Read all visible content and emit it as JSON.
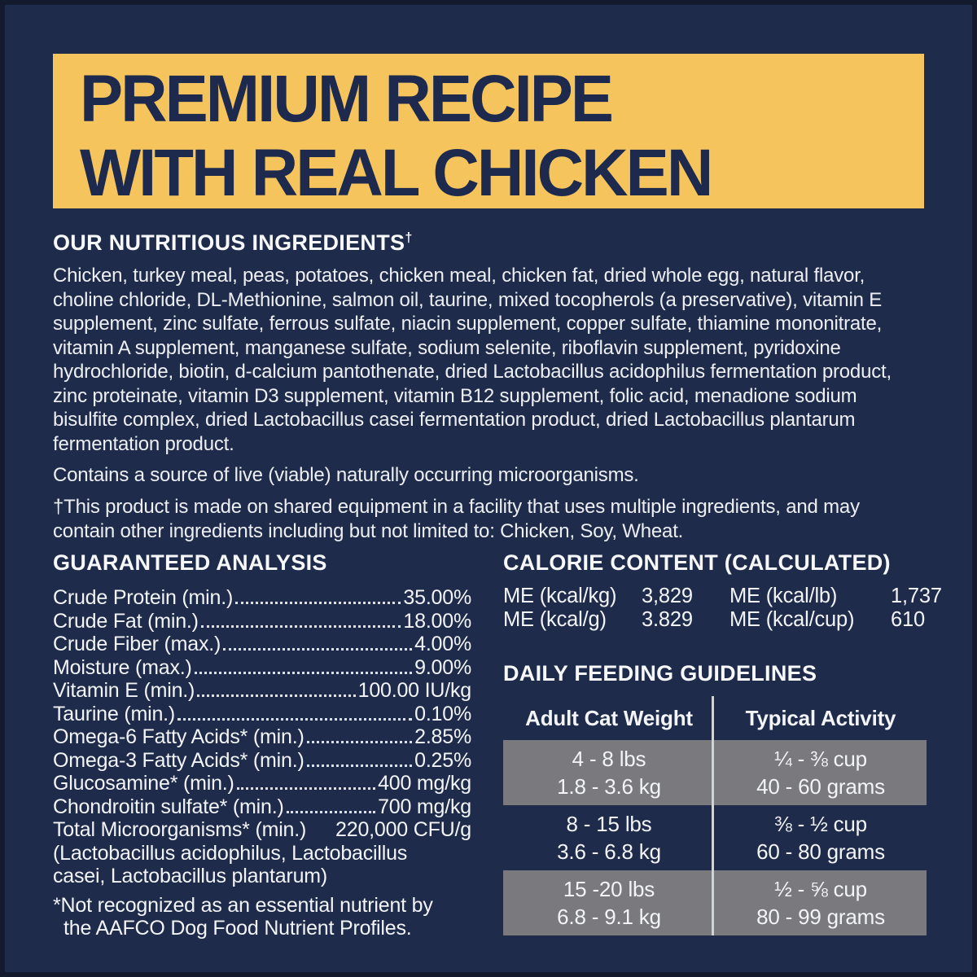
{
  "colors": {
    "background_navy": "#1f2b4a",
    "border_navy": "#131a2d",
    "banner_yellow": "#f6c45c",
    "banner_text_navy": "#1d2a4e",
    "body_text_white": "#edeff3",
    "table_row_gray": "#7a7a7e",
    "table_divider_gray": "#cfd2d6"
  },
  "banner": {
    "line1": "PREMIUM RECIPE",
    "line2": "WITH REAL CHICKEN"
  },
  "ingredients": {
    "heading": "OUR NUTRITIOUS INGREDIENTS",
    "heading_dagger": "†",
    "body": "Chicken, turkey meal, peas, potatoes, chicken meal, chicken fat, dried whole egg, natural flavor, choline chloride, DL-Methionine, salmon oil, taurine, mixed tocopherols (a preservative), vitamin E supplement, zinc sulfate, ferrous sulfate, niacin supplement, copper sulfate, thiamine mononitrate, vitamin A supplement, manganese sulfate, sodium selenite, riboflavin supplement, pyridoxine hydrochloride, biotin, d-calcium pantothenate, dried Lactobacillus acidophilus fermentation product, zinc proteinate, vitamin D3 supplement, vitamin B12 supplement, folic acid, menadione sodium bisulfite complex, dried Lactobacillus casei fermentation product, dried Lactobacillus plantarum fermentation product.",
    "contains_note": "Contains a source of live (viable) naturally occurring microorganisms.",
    "shared_equipment_note": "†This product is made on shared equipment in a facility that uses multiple ingredients, and may contain other ingredients including but not limited to: Chicken, Soy, Wheat."
  },
  "guaranteed_analysis": {
    "heading": "GUARANTEED ANALYSIS",
    "rows": [
      {
        "label": "Crude Protein (min.)",
        "value": "35.00%"
      },
      {
        "label": "Crude Fat (min.)",
        "value": "18.00%"
      },
      {
        "label": "Crude Fiber (max.)",
        "value": "4.00%"
      },
      {
        "label": "Moisture (max.)",
        "value": "9.00%"
      },
      {
        "label": "Vitamin E (min.)",
        "value": "100.00 IU/kg"
      },
      {
        "label": "Taurine (min.)",
        "value": "0.10%"
      },
      {
        "label": "Omega-6 Fatty Acids* (min.)",
        "value": "2.85%"
      },
      {
        "label": "Omega-3 Fatty Acids* (min.)",
        "value": "0.25%"
      },
      {
        "label": "Glucosamine* (min.)",
        "value": "400 mg/kg"
      },
      {
        "label": "Chondroitin sulfate* (min.)",
        "value": "700 mg/kg"
      },
      {
        "label": "Total Microorganisms* (min.)",
        "value": "220,000 CFU/g"
      }
    ],
    "continuation_line1": "(Lactobacillus acidophilus, Lactobacillus",
    "continuation_line2": "casei, Lactobacillus plantarum)",
    "footnote_line1": "*Not recognized as an essential nutrient by",
    "footnote_line2": "the AAFCO Dog Food Nutrient Profiles."
  },
  "calorie_content": {
    "heading": "CALORIE CONTENT (CALCULATED)",
    "entries": [
      {
        "label": "ME (kcal/kg)",
        "value": "3,829"
      },
      {
        "label": "ME (kcal/g)",
        "value": "3.829"
      },
      {
        "label": "ME (kcal/lb)",
        "value": "1,737"
      },
      {
        "label": "ME (kcal/cup)",
        "value": "610"
      }
    ]
  },
  "feeding_guidelines": {
    "heading": "DAILY FEEDING GUIDELINES",
    "columns": [
      "Adult Cat Weight",
      "Typical Activity"
    ],
    "rows": [
      {
        "weight": [
          "4 - 8 lbs",
          "1.8 - 3.6 kg"
        ],
        "activity": [
          "¼ - ⅜ cup",
          "40 - 60 grams"
        ]
      },
      {
        "weight": [
          "8 - 15 lbs",
          "3.6 - 6.8 kg"
        ],
        "activity": [
          "⅜ - ½ cup",
          "60 - 80 grams"
        ]
      },
      {
        "weight": [
          "15 -20 lbs",
          "6.8 - 9.1 kg"
        ],
        "activity": [
          "½ - ⅝ cup",
          "80 - 99 grams"
        ]
      }
    ]
  }
}
